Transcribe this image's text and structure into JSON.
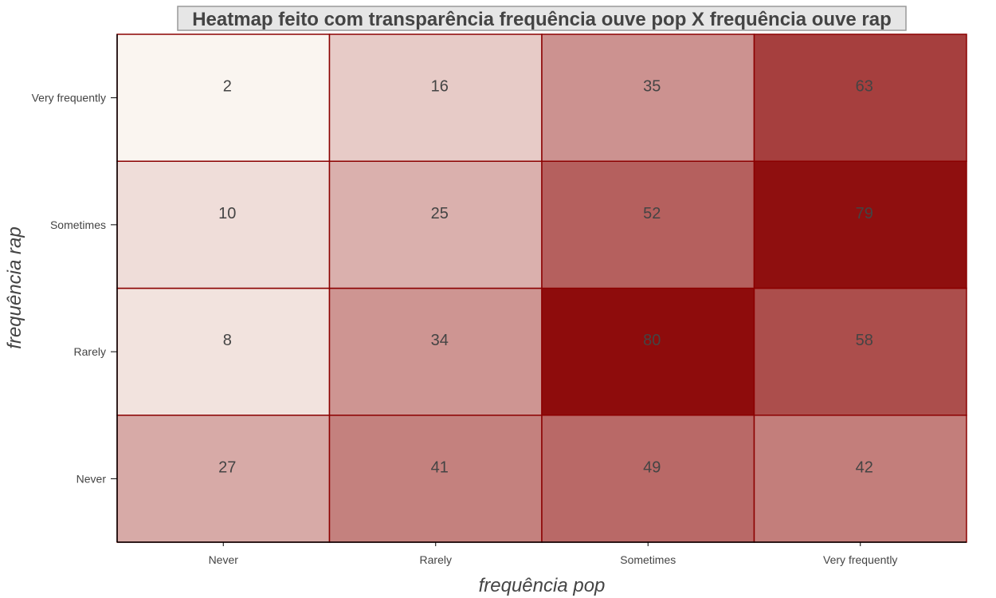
{
  "chart_data": {
    "type": "heatmap",
    "title": "Heatmap feito com transparência frequência ouve pop X frequência ouve rap",
    "xlabel": "frequência pop",
    "ylabel": "frequência rap",
    "x_categories": [
      "Never",
      "Rarely",
      "Sometimes",
      "Very frequently"
    ],
    "y_categories": [
      "Never",
      "Rarely",
      "Sometimes",
      "Very frequently"
    ],
    "values": [
      [
        27,
        41,
        49,
        42
      ],
      [
        8,
        34,
        80,
        58
      ],
      [
        10,
        25,
        52,
        79
      ],
      [
        2,
        16,
        35,
        63
      ]
    ],
    "color_low": "#faf5f0",
    "color_high": "#8e0c0c",
    "cell_border_color": "#8b0000",
    "title_box_fill": "#e6e6e6",
    "title_box_stroke": "#999999",
    "grid": false
  }
}
